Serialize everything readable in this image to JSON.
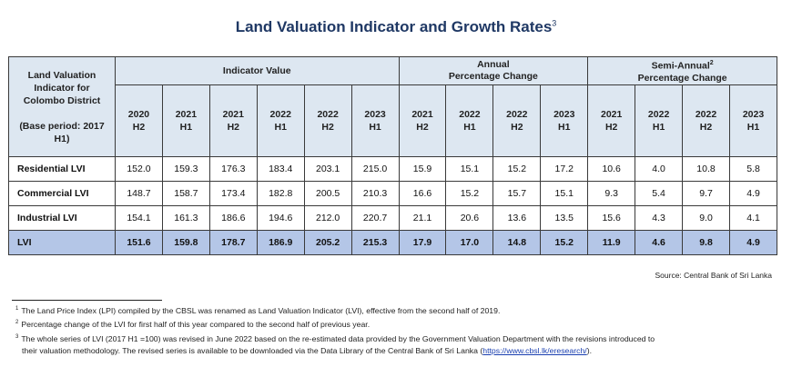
{
  "title": "Land Valuation Indicator and Growth Rates",
  "title_footnote_ref": "3",
  "table": {
    "row_header": {
      "line1": "Land Valuation",
      "line2": "Indicator for",
      "line3": "Colombo District",
      "line4": "(Base period: 2017",
      "line5": "H1)"
    },
    "groups": [
      {
        "label": "Indicator Value",
        "label2": "",
        "sup": ""
      },
      {
        "label": "Annual",
        "label2": "Percentage Change",
        "sup": ""
      },
      {
        "label": "Semi-Annual",
        "label2": "Percentage Change",
        "sup": "2"
      }
    ],
    "periods": [
      {
        "year": "2020",
        "half": "H2"
      },
      {
        "year": "2021",
        "half": "H1"
      },
      {
        "year": "2021",
        "half": "H2"
      },
      {
        "year": "2022",
        "half": "H1"
      },
      {
        "year": "2022",
        "half": "H2"
      },
      {
        "year": "2023",
        "half": "H1"
      },
      {
        "year": "2021",
        "half": "H2"
      },
      {
        "year": "2022",
        "half": "H1"
      },
      {
        "year": "2022",
        "half": "H2"
      },
      {
        "year": "2023",
        "half": "H1"
      },
      {
        "year": "2021",
        "half": "H2"
      },
      {
        "year": "2022",
        "half": "H1"
      },
      {
        "year": "2022",
        "half": "H2"
      },
      {
        "year": "2023",
        "half": "H1"
      }
    ],
    "rows": [
      {
        "label": "Residential LVI",
        "values": [
          "152.0",
          "159.3",
          "176.3",
          "183.4",
          "203.1",
          "215.0",
          "15.9",
          "15.1",
          "15.2",
          "17.2",
          "10.6",
          "4.0",
          "10.8",
          "5.8"
        ]
      },
      {
        "label": "Commercial LVI",
        "values": [
          "148.7",
          "158.7",
          "173.4",
          "182.8",
          "200.5",
          "210.3",
          "16.6",
          "15.2",
          "15.7",
          "15.1",
          "9.3",
          "5.4",
          "9.7",
          "4.9"
        ]
      },
      {
        "label": "Industrial LVI",
        "values": [
          "154.1",
          "161.3",
          "186.6",
          "194.6",
          "212.0",
          "220.7",
          "21.1",
          "20.6",
          "13.6",
          "13.5",
          "15.6",
          "4.3",
          "9.0",
          "4.1"
        ]
      },
      {
        "label": "LVI",
        "values": [
          "151.6",
          "159.8",
          "178.7",
          "186.9",
          "205.2",
          "215.3",
          "17.9",
          "17.0",
          "14.8",
          "15.2",
          "11.9",
          "4.6",
          "9.8",
          "4.9"
        ]
      }
    ]
  },
  "source": "Source: Central Bank of Sri Lanka",
  "footnotes": [
    {
      "num": "1",
      "text": "The Land Price Index (LPI) compiled by the CBSL was renamed as Land Valuation Indicator (LVI), effective from the second half of 2019."
    },
    {
      "num": "2",
      "text": "Percentage change of the LVI for first half of this year compared to the second half of previous year."
    },
    {
      "num": "3",
      "text": "The whole series of LVI (2017 H1 =100) was revised in June 2022 based on the re-estimated data provided by the Government Valuation Department with the revisions introduced to",
      "text2": "their valuation methodology. The revised series is available to be downloaded via the Data Library of the Central Bank of Sri Lanka (",
      "link": "https://www.cbsl.lk/eresearch/",
      "text3": ")."
    }
  ],
  "colors": {
    "title": "#1f3864",
    "header_bg": "#dde7f1",
    "total_row_bg": "#b4c6e7",
    "link": "#1a3fb0"
  }
}
